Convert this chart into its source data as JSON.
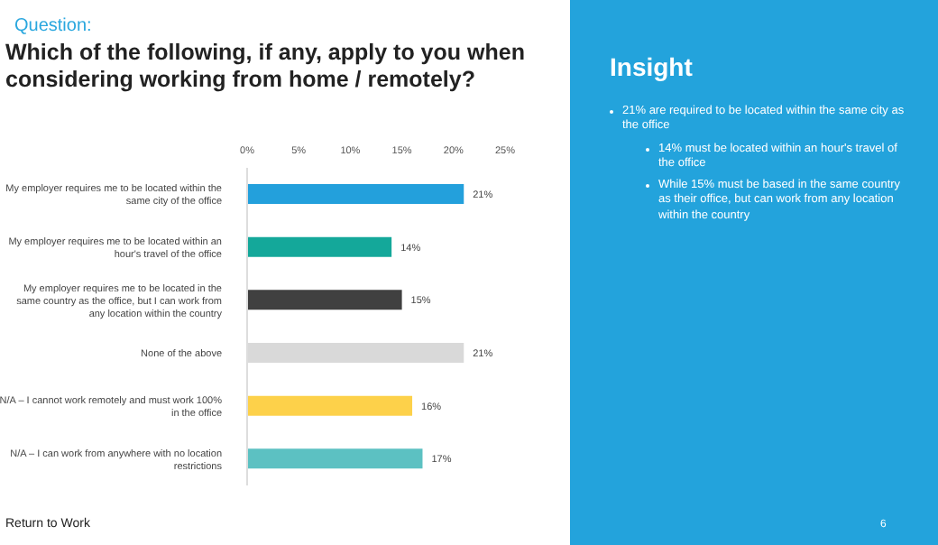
{
  "chart_data": {
    "type": "bar",
    "orientation": "horizontal",
    "title": "Which of the following, if any, apply to you when considering working from home / remotely?",
    "categories": [
      "My employer requires me to be located within the same city of the office",
      "My employer requires me to be located within an hour's travel of the office",
      "My employer requires me to be located in the same country as the office, but I can work from any location within the country",
      "None of the above",
      "N/A – I cannot work remotely and must work 100% in the office",
      "N/A – I can work from anywhere with no location restrictions"
    ],
    "values": [
      21,
      14,
      15,
      21,
      16,
      17
    ],
    "colors": [
      "#23a0dc",
      "#14a89a",
      "#404040",
      "#d9d9d9",
      "#fdd14a",
      "#5cc1c2"
    ],
    "value_labels": [
      "21%",
      "14%",
      "15%",
      "21%",
      "16%",
      "17%"
    ],
    "xlim": [
      0,
      25
    ],
    "xticks": [
      {
        "value": 0,
        "label": "0%"
      },
      {
        "value": 5,
        "label": "5%"
      },
      {
        "value": 10,
        "label": "10%"
      },
      {
        "value": 15,
        "label": "15%"
      },
      {
        "value": 20,
        "label": "20%"
      },
      {
        "value": 25,
        "label": "25%"
      }
    ],
    "annotations": [
      "Question:",
      "Insight",
      "21% are required to be located within the same city as the office",
      "14% must be located within an hour's travel of the office",
      "While 15% must be based in the same country as their office, but can work from any location within the country",
      "Return to Work",
      "6"
    ]
  }
}
